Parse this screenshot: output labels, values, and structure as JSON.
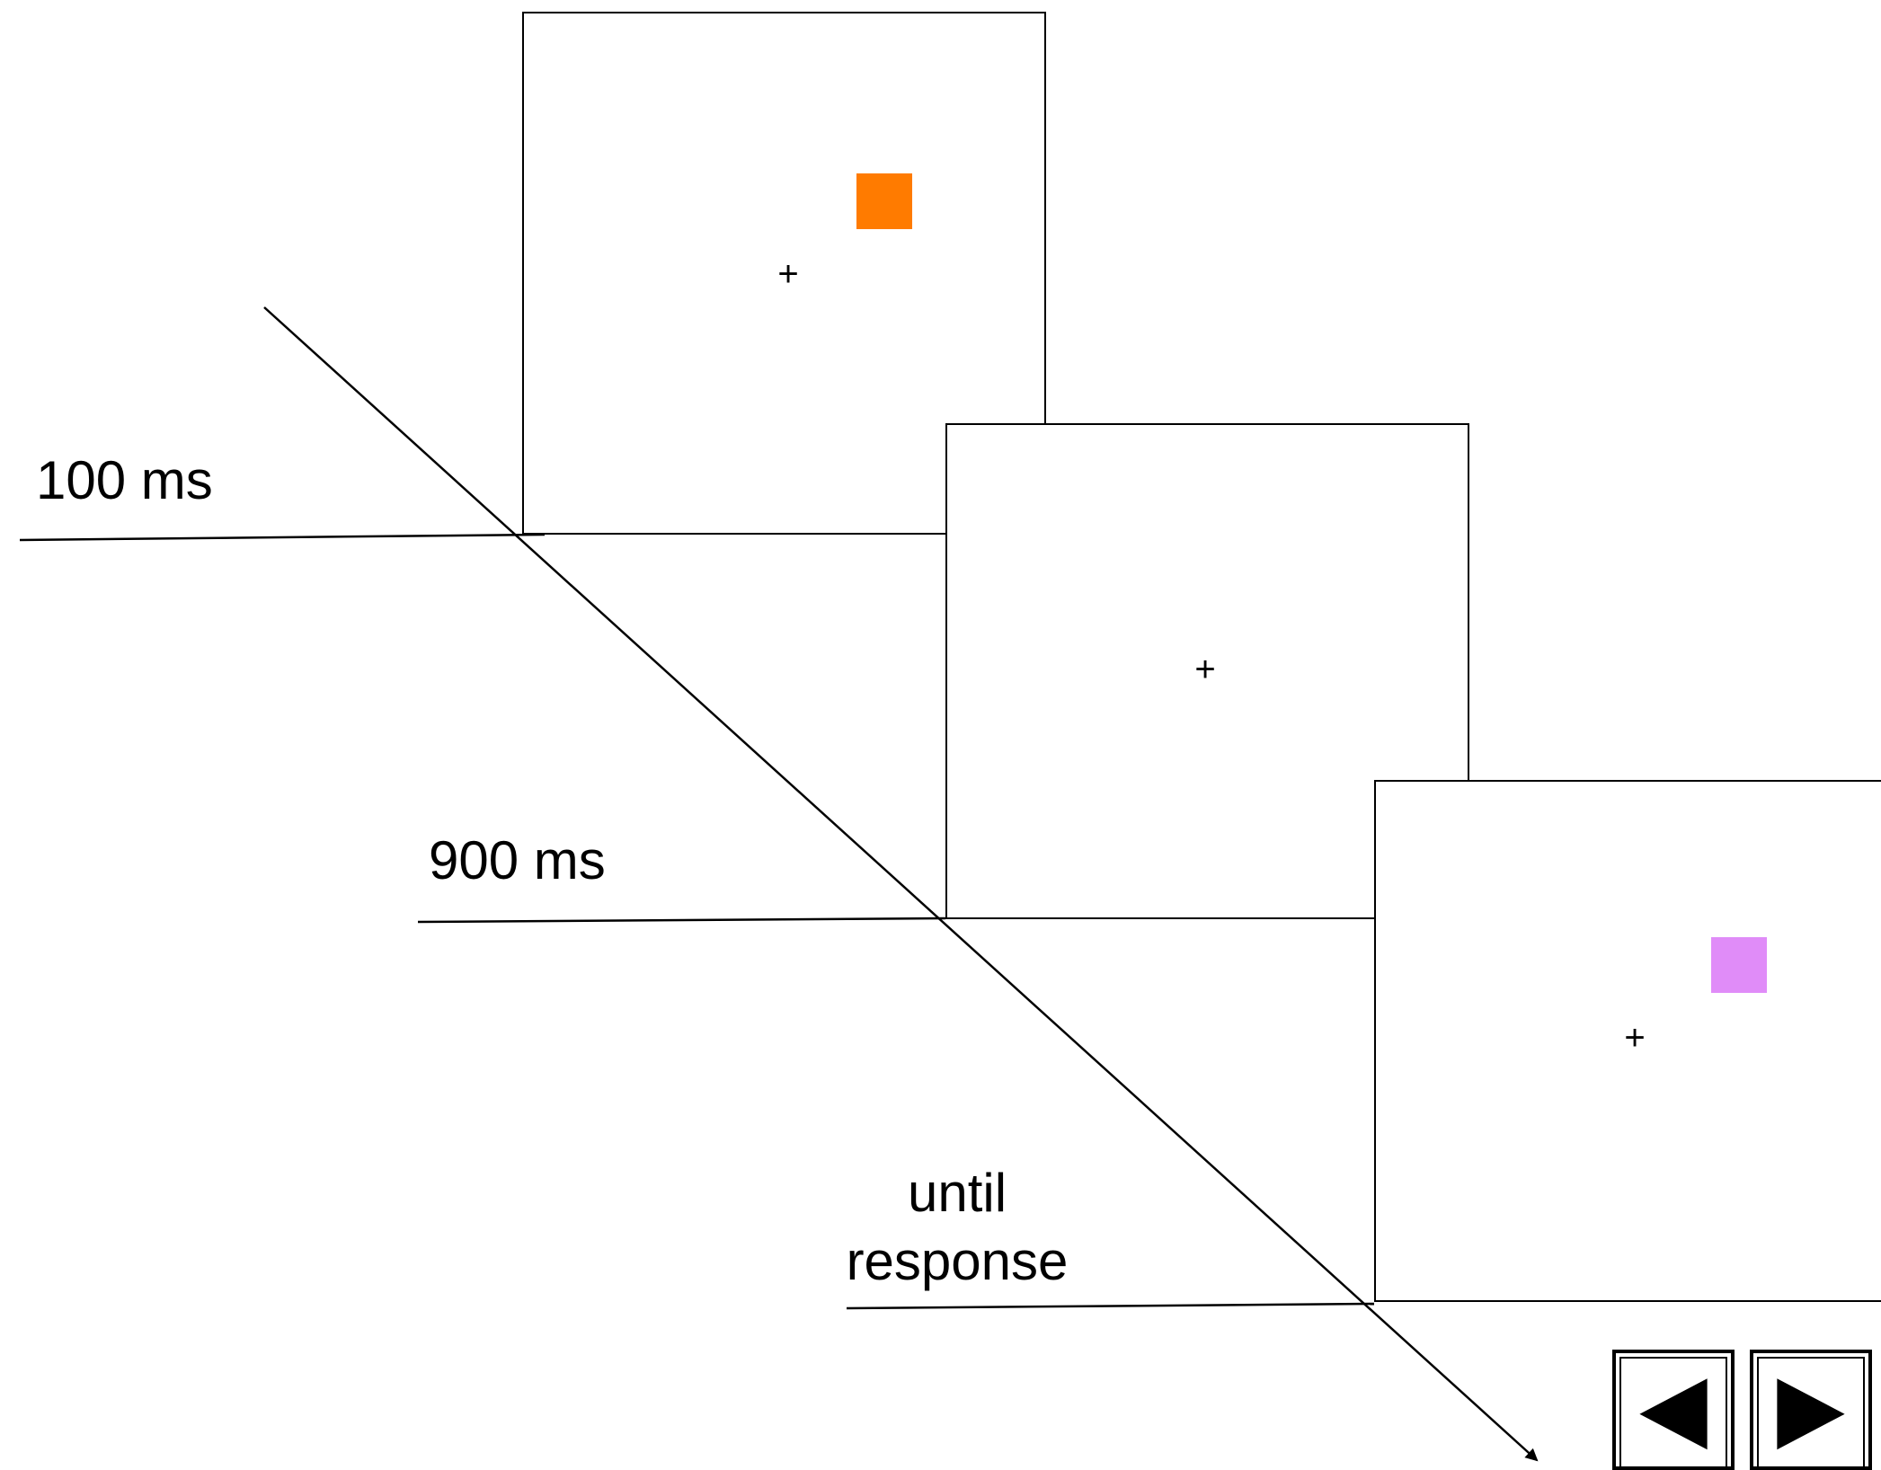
{
  "colors": {
    "stimulus_1": "#ff7b00",
    "stimulus_3": "#e08cf8",
    "line": "#000000",
    "background": "#ffffff"
  },
  "screens": [
    {
      "fixation": "+",
      "stimulus": "orange-square"
    },
    {
      "fixation": "+",
      "stimulus": "none"
    },
    {
      "fixation": "+",
      "stimulus": "violet-square"
    }
  ],
  "durations": {
    "first": "100 ms",
    "second": "900 ms",
    "third_line1": "until",
    "third_line2": "response"
  },
  "navigation": {
    "prev_icon": "triangle-left-icon",
    "next_icon": "triangle-right-icon"
  }
}
